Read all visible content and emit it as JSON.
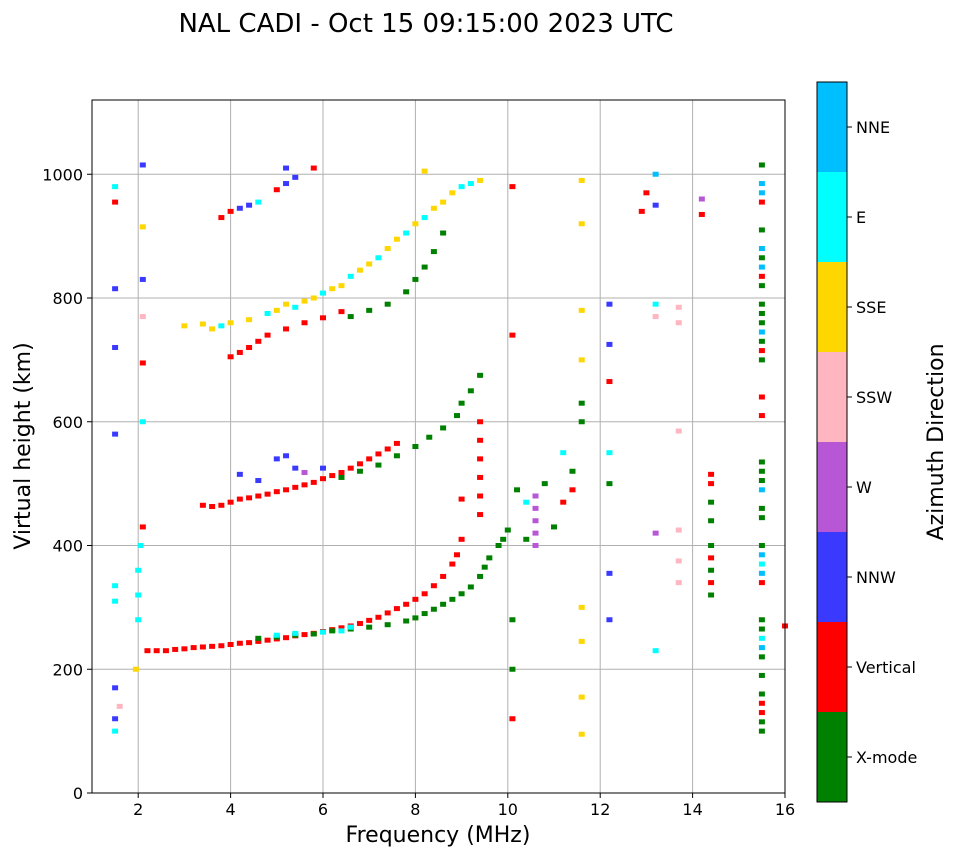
{
  "chart_data": {
    "type": "scatter",
    "title": "NAL CADI - Oct 15 09:15:00 2023 UTC",
    "xlabel": "Frequency (MHz)",
    "ylabel": "Virtual height (km)",
    "xlim": [
      1,
      16
    ],
    "ylim": [
      0,
      1120
    ],
    "xticks": [
      2,
      4,
      6,
      8,
      10,
      12,
      14,
      16
    ],
    "yticks": [
      0,
      200,
      400,
      600,
      800,
      1000
    ],
    "grid": true,
    "colorbar": {
      "label": "Azimuth Direction",
      "categories": [
        {
          "code": "g",
          "name": "X-mode",
          "color": "#008000"
        },
        {
          "code": "r",
          "name": "Vertical",
          "color": "#ff0000"
        },
        {
          "code": "b",
          "name": "NNW",
          "color": "#3a3aff"
        },
        {
          "code": "w",
          "name": "W",
          "color": "#b857d6"
        },
        {
          "code": "p",
          "name": "SSW",
          "color": "#ffb6c1"
        },
        {
          "code": "y",
          "name": "SSE",
          "color": "#ffd700"
        },
        {
          "code": "c",
          "name": "E",
          "color": "#00ffff"
        },
        {
          "code": "n",
          "name": "NNE",
          "color": "#00bfff"
        }
      ]
    },
    "points": [
      [
        2.2,
        230,
        "r"
      ],
      [
        2.4,
        230,
        "r"
      ],
      [
        2.6,
        230,
        "r"
      ],
      [
        2.8,
        232,
        "r"
      ],
      [
        3.0,
        233,
        "r"
      ],
      [
        3.2,
        235,
        "r"
      ],
      [
        3.4,
        236,
        "r"
      ],
      [
        3.6,
        237,
        "r"
      ],
      [
        3.8,
        238,
        "r"
      ],
      [
        4.0,
        240,
        "r"
      ],
      [
        4.2,
        242,
        "r"
      ],
      [
        4.4,
        243,
        "r"
      ],
      [
        4.6,
        245,
        "r"
      ],
      [
        4.8,
        247,
        "r"
      ],
      [
        5.0,
        249,
        "r"
      ],
      [
        5.2,
        251,
        "r"
      ],
      [
        5.4,
        254,
        "r"
      ],
      [
        5.6,
        256,
        "r"
      ],
      [
        5.8,
        258,
        "r"
      ],
      [
        6.0,
        261,
        "r"
      ],
      [
        6.2,
        264,
        "r"
      ],
      [
        6.4,
        267,
        "r"
      ],
      [
        6.6,
        270,
        "r"
      ],
      [
        6.8,
        274,
        "r"
      ],
      [
        7.0,
        279,
        "r"
      ],
      [
        7.2,
        284,
        "r"
      ],
      [
        7.4,
        291,
        "r"
      ],
      [
        7.6,
        298,
        "r"
      ],
      [
        7.8,
        305,
        "r"
      ],
      [
        8.0,
        313,
        "r"
      ],
      [
        8.2,
        322,
        "r"
      ],
      [
        8.4,
        335,
        "r"
      ],
      [
        8.6,
        350,
        "r"
      ],
      [
        8.8,
        370,
        "r"
      ],
      [
        8.9,
        385,
        "r"
      ],
      [
        9.0,
        410,
        "r"
      ],
      [
        4.6,
        250,
        "g"
      ],
      [
        5.0,
        252,
        "g"
      ],
      [
        5.4,
        255,
        "g"
      ],
      [
        5.8,
        257,
        "g"
      ],
      [
        6.2,
        262,
        "g"
      ],
      [
        6.6,
        265,
        "g"
      ],
      [
        7.0,
        268,
        "g"
      ],
      [
        7.4,
        272,
        "g"
      ],
      [
        7.8,
        278,
        "g"
      ],
      [
        8.0,
        283,
        "g"
      ],
      [
        8.2,
        290,
        "g"
      ],
      [
        8.4,
        297,
        "g"
      ],
      [
        8.6,
        305,
        "g"
      ],
      [
        8.8,
        313,
        "g"
      ],
      [
        9.0,
        322,
        "g"
      ],
      [
        9.2,
        333,
        "g"
      ],
      [
        9.4,
        350,
        "g"
      ],
      [
        9.5,
        365,
        "g"
      ],
      [
        9.6,
        380,
        "g"
      ],
      [
        9.8,
        400,
        "g"
      ],
      [
        9.9,
        410,
        "g"
      ],
      [
        10.0,
        425,
        "g"
      ],
      [
        5.0,
        255,
        "c"
      ],
      [
        5.4,
        258,
        "c"
      ],
      [
        6.0,
        260,
        "c"
      ],
      [
        6.4,
        262,
        "c"
      ],
      [
        6.6,
        268,
        "c"
      ],
      [
        3.4,
        465,
        "r"
      ],
      [
        3.6,
        463,
        "r"
      ],
      [
        3.8,
        465,
        "r"
      ],
      [
        4.0,
        470,
        "r"
      ],
      [
        4.2,
        475,
        "r"
      ],
      [
        4.4,
        477,
        "r"
      ],
      [
        4.6,
        480,
        "r"
      ],
      [
        4.8,
        483,
        "r"
      ],
      [
        5.0,
        487,
        "r"
      ],
      [
        5.2,
        490,
        "r"
      ],
      [
        5.4,
        494,
        "r"
      ],
      [
        5.6,
        498,
        "r"
      ],
      [
        5.8,
        502,
        "r"
      ],
      [
        6.0,
        508,
        "r"
      ],
      [
        6.2,
        513,
        "r"
      ],
      [
        6.4,
        518,
        "r"
      ],
      [
        6.6,
        525,
        "r"
      ],
      [
        6.8,
        532,
        "r"
      ],
      [
        7.0,
        540,
        "r"
      ],
      [
        7.2,
        548,
        "r"
      ],
      [
        7.4,
        556,
        "r"
      ],
      [
        7.6,
        565,
        "r"
      ],
      [
        6.4,
        510,
        "g"
      ],
      [
        6.8,
        520,
        "g"
      ],
      [
        7.2,
        530,
        "g"
      ],
      [
        7.6,
        545,
        "g"
      ],
      [
        8.0,
        560,
        "g"
      ],
      [
        8.3,
        575,
        "g"
      ],
      [
        8.6,
        590,
        "g"
      ],
      [
        8.9,
        610,
        "g"
      ],
      [
        9.0,
        630,
        "g"
      ],
      [
        9.2,
        650,
        "g"
      ],
      [
        9.4,
        675,
        "g"
      ],
      [
        5.0,
        540,
        "b"
      ],
      [
        5.2,
        545,
        "b"
      ],
      [
        4.6,
        505,
        "b"
      ],
      [
        5.4,
        525,
        "b"
      ],
      [
        6.0,
        525,
        "b"
      ],
      [
        4.2,
        515,
        "b"
      ],
      [
        5.6,
        518,
        "w"
      ],
      [
        4.0,
        705,
        "r"
      ],
      [
        4.2,
        712,
        "r"
      ],
      [
        4.4,
        720,
        "r"
      ],
      [
        4.6,
        730,
        "r"
      ],
      [
        4.8,
        740,
        "r"
      ],
      [
        5.2,
        750,
        "r"
      ],
      [
        5.6,
        760,
        "r"
      ],
      [
        6.0,
        768,
        "r"
      ],
      [
        6.4,
        778,
        "r"
      ],
      [
        3.0,
        755,
        "y"
      ],
      [
        3.4,
        758,
        "y"
      ],
      [
        3.6,
        750,
        "y"
      ],
      [
        3.8,
        755,
        "c"
      ],
      [
        4.0,
        760,
        "y"
      ],
      [
        4.4,
        765,
        "y"
      ],
      [
        4.8,
        775,
        "c"
      ],
      [
        5.0,
        780,
        "y"
      ],
      [
        5.2,
        790,
        "y"
      ],
      [
        5.4,
        785,
        "c"
      ],
      [
        5.6,
        795,
        "y"
      ],
      [
        5.8,
        800,
        "y"
      ],
      [
        6.0,
        808,
        "c"
      ],
      [
        6.2,
        815,
        "y"
      ],
      [
        6.4,
        820,
        "y"
      ],
      [
        6.6,
        835,
        "c"
      ],
      [
        6.8,
        845,
        "y"
      ],
      [
        7.0,
        855,
        "y"
      ],
      [
        7.2,
        865,
        "c"
      ],
      [
        7.4,
        880,
        "y"
      ],
      [
        7.6,
        895,
        "y"
      ],
      [
        7.8,
        905,
        "c"
      ],
      [
        8.0,
        920,
        "y"
      ],
      [
        8.2,
        930,
        "c"
      ],
      [
        8.4,
        945,
        "y"
      ],
      [
        8.6,
        955,
        "y"
      ],
      [
        8.8,
        970,
        "y"
      ],
      [
        9.0,
        980,
        "c"
      ],
      [
        6.6,
        770,
        "g"
      ],
      [
        7.0,
        780,
        "g"
      ],
      [
        7.4,
        790,
        "g"
      ],
      [
        7.8,
        810,
        "g"
      ],
      [
        8.0,
        830,
        "g"
      ],
      [
        8.2,
        850,
        "g"
      ],
      [
        8.4,
        875,
        "g"
      ],
      [
        8.6,
        905,
        "g"
      ],
      [
        3.8,
        930,
        "r"
      ],
      [
        4.0,
        940,
        "r"
      ],
      [
        4.2,
        945,
        "b"
      ],
      [
        4.4,
        950,
        "b"
      ],
      [
        4.6,
        955,
        "c"
      ],
      [
        5.0,
        975,
        "r"
      ],
      [
        5.2,
        985,
        "b"
      ],
      [
        5.4,
        995,
        "b"
      ],
      [
        5.2,
        1010,
        "b"
      ],
      [
        5.8,
        1010,
        "r"
      ],
      [
        8.2,
        1005,
        "y"
      ],
      [
        9.4,
        990,
        "y"
      ],
      [
        9.2,
        985,
        "c"
      ],
      [
        9.4,
        450,
        "r"
      ],
      [
        9.4,
        480,
        "r"
      ],
      [
        9.4,
        510,
        "r"
      ],
      [
        9.4,
        540,
        "r"
      ],
      [
        9.4,
        570,
        "r"
      ],
      [
        9.4,
        600,
        "r"
      ],
      [
        9.0,
        475,
        "r"
      ],
      [
        10.6,
        400,
        "w"
      ],
      [
        10.6,
        420,
        "w"
      ],
      [
        10.6,
        440,
        "w"
      ],
      [
        10.6,
        460,
        "w"
      ],
      [
        10.6,
        480,
        "w"
      ],
      [
        10.8,
        500,
        "g"
      ],
      [
        11.0,
        430,
        "g"
      ],
      [
        11.2,
        470,
        "r"
      ],
      [
        11.4,
        490,
        "r"
      ],
      [
        11.4,
        520,
        "g"
      ],
      [
        11.2,
        550,
        "c"
      ],
      [
        11.6,
        600,
        "g"
      ],
      [
        11.6,
        630,
        "g"
      ],
      [
        10.2,
        490,
        "g"
      ],
      [
        10.4,
        470,
        "c"
      ],
      [
        10.4,
        410,
        "g"
      ],
      [
        11.6,
        95,
        "y"
      ],
      [
        11.6,
        155,
        "y"
      ],
      [
        11.6,
        245,
        "y"
      ],
      [
        11.6,
        300,
        "y"
      ],
      [
        11.6,
        700,
        "y"
      ],
      [
        11.6,
        780,
        "y"
      ],
      [
        11.6,
        920,
        "y"
      ],
      [
        11.6,
        990,
        "y"
      ],
      [
        12.2,
        790,
        "b"
      ],
      [
        12.2,
        725,
        "b"
      ],
      [
        12.2,
        665,
        "r"
      ],
      [
        12.2,
        550,
        "c"
      ],
      [
        12.2,
        500,
        "g"
      ],
      [
        12.2,
        355,
        "b"
      ],
      [
        12.2,
        280,
        "b"
      ],
      [
        13.2,
        1000,
        "n"
      ],
      [
        13.0,
        970,
        "r"
      ],
      [
        12.9,
        940,
        "r"
      ],
      [
        13.2,
        950,
        "b"
      ],
      [
        13.2,
        790,
        "c"
      ],
      [
        13.2,
        770,
        "p"
      ],
      [
        13.2,
        420,
        "w"
      ],
      [
        13.2,
        230,
        "c"
      ],
      [
        13.7,
        785,
        "p"
      ],
      [
        13.7,
        760,
        "p"
      ],
      [
        13.7,
        585,
        "p"
      ],
      [
        13.7,
        425,
        "p"
      ],
      [
        13.7,
        375,
        "p"
      ],
      [
        13.7,
        340,
        "p"
      ],
      [
        14.2,
        960,
        "w"
      ],
      [
        14.2,
        935,
        "r"
      ],
      [
        14.4,
        320,
        "g"
      ],
      [
        14.4,
        340,
        "r"
      ],
      [
        14.4,
        360,
        "g"
      ],
      [
        14.4,
        380,
        "r"
      ],
      [
        14.4,
        400,
        "g"
      ],
      [
        14.4,
        440,
        "g"
      ],
      [
        14.4,
        470,
        "g"
      ],
      [
        14.4,
        500,
        "r"
      ],
      [
        14.4,
        515,
        "r"
      ],
      [
        15.5,
        100,
        "g"
      ],
      [
        15.5,
        115,
        "g"
      ],
      [
        15.5,
        130,
        "r"
      ],
      [
        15.5,
        145,
        "r"
      ],
      [
        15.5,
        160,
        "g"
      ],
      [
        15.5,
        190,
        "g"
      ],
      [
        15.5,
        220,
        "g"
      ],
      [
        15.5,
        235,
        "n"
      ],
      [
        15.5,
        250,
        "c"
      ],
      [
        15.5,
        265,
        "g"
      ],
      [
        15.5,
        280,
        "g"
      ],
      [
        15.5,
        340,
        "r"
      ],
      [
        15.5,
        355,
        "n"
      ],
      [
        15.5,
        370,
        "c"
      ],
      [
        15.5,
        385,
        "n"
      ],
      [
        15.5,
        400,
        "g"
      ],
      [
        15.5,
        445,
        "g"
      ],
      [
        15.5,
        460,
        "g"
      ],
      [
        15.5,
        490,
        "n"
      ],
      [
        15.5,
        505,
        "g"
      ],
      [
        15.5,
        520,
        "g"
      ],
      [
        15.5,
        535,
        "g"
      ],
      [
        15.5,
        610,
        "r"
      ],
      [
        15.5,
        640,
        "r"
      ],
      [
        15.5,
        700,
        "g"
      ],
      [
        15.5,
        715,
        "r"
      ],
      [
        15.5,
        730,
        "g"
      ],
      [
        15.5,
        745,
        "n"
      ],
      [
        15.5,
        760,
        "g"
      ],
      [
        15.5,
        775,
        "g"
      ],
      [
        15.5,
        790,
        "g"
      ],
      [
        15.5,
        820,
        "g"
      ],
      [
        15.5,
        835,
        "r"
      ],
      [
        15.5,
        850,
        "n"
      ],
      [
        15.5,
        865,
        "g"
      ],
      [
        15.5,
        880,
        "n"
      ],
      [
        15.5,
        910,
        "g"
      ],
      [
        15.5,
        955,
        "r"
      ],
      [
        15.5,
        970,
        "n"
      ],
      [
        15.5,
        985,
        "n"
      ],
      [
        15.5,
        1015,
        "g"
      ],
      [
        16.0,
        270,
        "r"
      ],
      [
        10.1,
        980,
        "r"
      ],
      [
        10.1,
        740,
        "r"
      ],
      [
        10.1,
        120,
        "r"
      ],
      [
        10.1,
        200,
        "g"
      ],
      [
        10.1,
        280,
        "g"
      ],
      [
        1.5,
        100,
        "c"
      ],
      [
        1.5,
        120,
        "b"
      ],
      [
        1.6,
        140,
        "p"
      ],
      [
        1.5,
        170,
        "b"
      ],
      [
        1.5,
        310,
        "c"
      ],
      [
        1.5,
        335,
        "c"
      ],
      [
        1.5,
        580,
        "b"
      ],
      [
        1.5,
        720,
        "b"
      ],
      [
        1.5,
        815,
        "b"
      ],
      [
        1.5,
        955,
        "r"
      ],
      [
        1.5,
        980,
        "c"
      ],
      [
        1.95,
        200,
        "y"
      ],
      [
        2.0,
        280,
        "c"
      ],
      [
        2.0,
        320,
        "c"
      ],
      [
        2.0,
        360,
        "c"
      ],
      [
        2.05,
        400,
        "c"
      ],
      [
        2.1,
        430,
        "r"
      ],
      [
        2.1,
        600,
        "c"
      ],
      [
        2.1,
        695,
        "r"
      ],
      [
        2.1,
        770,
        "p"
      ],
      [
        2.1,
        830,
        "b"
      ],
      [
        2.1,
        915,
        "y"
      ],
      [
        2.1,
        1015,
        "b"
      ]
    ]
  }
}
